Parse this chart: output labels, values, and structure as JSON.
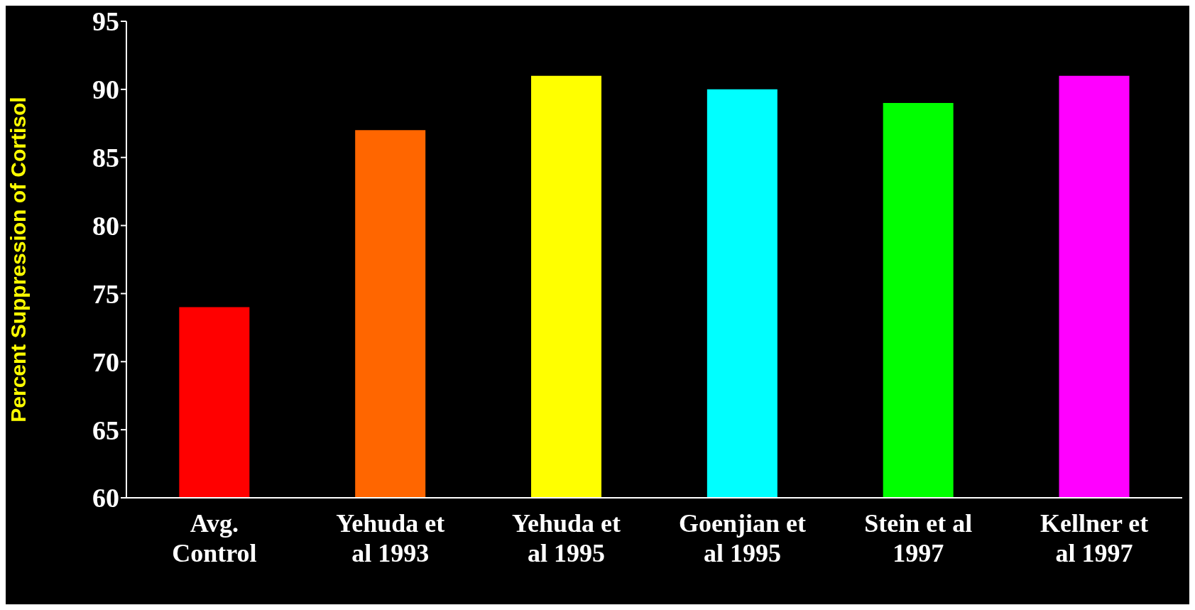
{
  "chart_data": {
    "type": "bar",
    "ylabel": "Percent Suppression of Cortisol",
    "categories": [
      "Avg.\nControl",
      "Yehuda et\nal 1993",
      "Yehuda et\nal 1995",
      "Goenjian et\nal 1995",
      "Stein et al\n1997",
      "Kellner et\nal 1997"
    ],
    "values": [
      74,
      87,
      91,
      90,
      89,
      91
    ],
    "colors": [
      "#ff0000",
      "#ff6600",
      "#ffff00",
      "#00ffff",
      "#00ff00",
      "#ff00ff"
    ],
    "ylim": [
      60,
      95
    ],
    "yticks": [
      60,
      65,
      70,
      75,
      80,
      85,
      90,
      95
    ],
    "grid": false,
    "legend": false
  }
}
